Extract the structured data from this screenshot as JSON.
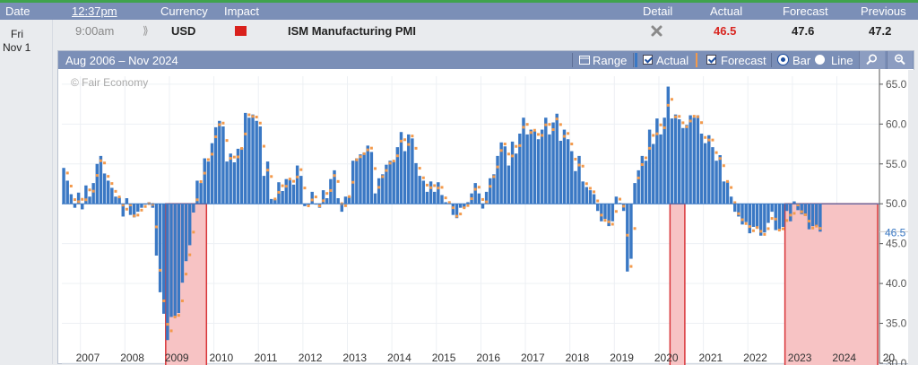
{
  "header": {
    "date": "Date",
    "time": "12:37pm",
    "currency": "Currency",
    "impact": "Impact",
    "detail": "Detail",
    "actual": "Actual",
    "forecast": "Forecast",
    "previous": "Previous"
  },
  "day": {
    "weekday": "Fri",
    "date": "Nov 1"
  },
  "event": {
    "time": "9:00am",
    "currency": "USD",
    "impact": "high",
    "name": "ISM Manufacturing PMI",
    "actual": "46.5",
    "forecast": "47.6",
    "previous": "47.2"
  },
  "colors": {
    "actual_red": "#d8241f",
    "bar_blue": "#3a78c4",
    "forecast_orange": "#f39a4c",
    "header_bg": "#7b8fb7",
    "impact_red": "#d9211c",
    "shade_fill": "#f7c3c4",
    "shade_border": "#d8363a"
  },
  "toolbar": {
    "range_label": "Aug 2006 – Nov 2024",
    "range_button": "Range",
    "actual_label": "Actual",
    "actual_checked": true,
    "forecast_label": "Forecast",
    "forecast_checked": true,
    "bar_label": "Bar",
    "line_label": "Line",
    "selected_mode": "bar",
    "zoom_in_icon": "zoom-in-icon",
    "zoom_out_icon": "zoom-out-icon",
    "range_icon": "calendar-icon"
  },
  "chart_data": {
    "type": "bar",
    "title": "",
    "watermark": "© Fair Economy",
    "baseline": 50,
    "ylim": [
      30.0,
      66.0
    ],
    "yticks": [
      "30.0",
      "35.0",
      "40.0",
      "45.0",
      "50.0",
      "55.0",
      "60.0",
      "65.0"
    ],
    "latest_label": "46.5",
    "x_start": "2006-08",
    "x_end": "2024-11",
    "xticks": [
      "2007",
      "2008",
      "2009",
      "2010",
      "2011",
      "2012",
      "2013",
      "2014",
      "2015",
      "2016",
      "2017",
      "2018",
      "2019",
      "2020",
      "2021",
      "2022",
      "2023",
      "2024",
      "20"
    ],
    "grid": true,
    "legend": "toolbar",
    "shaded_periods": [
      [
        "2008-12",
        "2009-10"
      ],
      [
        "2020-04",
        "2020-07"
      ],
      [
        "2022-11",
        "2024-11"
      ]
    ],
    "series": [
      {
        "name": "Actual",
        "kind": "bar",
        "start": "2006-08",
        "values": [
          54.5,
          52.9,
          51.2,
          49.5,
          51.4,
          49.3,
          52.3,
          50.9,
          52.6,
          55.0,
          56.0,
          53.8,
          52.9,
          52.0,
          50.9,
          50.8,
          48.4,
          50.7,
          48.6,
          48.3,
          49.0,
          49.5,
          49.9,
          50.2,
          49.5,
          43.5,
          38.9,
          36.2,
          32.9,
          35.8,
          35.8,
          36.3,
          40.1,
          42.8,
          44.8,
          48.9,
          52.9,
          52.6,
          55.7,
          55.3,
          57.6,
          59.6,
          60.4,
          59.7,
          55.3,
          56.3,
          55.2,
          56.9,
          57.0,
          61.4,
          60.8,
          61.2,
          60.4,
          59.7,
          53.5,
          55.3,
          50.6,
          50.6,
          52.7,
          51.6,
          53.1,
          53.1,
          52.4,
          54.8,
          53.5,
          49.7,
          49.8,
          51.5,
          49.9,
          49.5,
          51.7,
          50.7,
          53.1,
          54.2,
          50.7,
          49.0,
          50.9,
          50.9,
          55.4,
          55.7,
          56.2,
          56.4,
          57.3,
          56.5,
          51.3,
          53.2,
          53.7,
          54.9,
          55.4,
          55.3,
          57.1,
          59.0,
          56.6,
          58.7,
          58.2,
          55.1,
          53.5,
          52.9,
          51.5,
          52.8,
          51.5,
          52.7,
          51.1,
          50.2,
          50.1,
          48.6,
          48.2,
          49.5,
          49.5,
          50.2,
          51.3,
          52.6,
          51.3,
          49.4,
          51.5,
          53.2,
          53.7,
          56.0,
          57.7,
          57.2,
          54.8,
          57.8,
          56.3,
          58.8,
          60.8,
          58.7,
          59.3,
          59.1,
          58.1,
          59.3,
          60.8,
          58.7,
          60.2,
          61.3,
          57.9,
          59.3,
          58.1,
          56.6,
          54.1,
          56.0,
          52.8,
          52.1,
          51.7,
          51.2,
          49.1,
          47.8,
          48.1,
          47.2,
          47.8,
          50.9,
          50.1,
          49.1,
          41.5,
          43.1,
          52.6,
          54.2,
          56.0,
          55.4,
          59.3,
          57.5,
          60.7,
          58.7,
          60.8,
          64.7,
          60.7,
          61.2,
          60.6,
          59.5,
          59.9,
          61.1,
          60.8,
          61.1,
          58.8,
          57.6,
          58.6,
          57.1,
          55.4,
          56.1,
          52.8,
          52.8,
          50.9,
          49.0,
          48.4,
          47.4,
          47.7,
          46.3,
          47.1,
          46.9,
          46.0,
          46.4,
          47.6,
          49.0,
          46.7,
          46.7,
          47.1,
          49.1,
          47.8,
          50.3,
          49.2,
          48.7,
          48.5,
          46.8,
          47.2,
          47.2,
          46.5
        ]
      }
    ]
  }
}
